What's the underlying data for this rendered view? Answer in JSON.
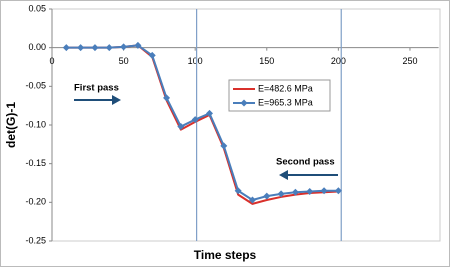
{
  "chart_data": {
    "type": "line",
    "x_label": "Time steps",
    "y_label": "det(G)-1",
    "x": [
      10,
      20,
      30,
      40,
      50,
      60,
      70,
      80,
      90,
      100,
      110,
      120,
      130,
      140,
      150,
      160,
      170,
      180,
      190,
      200
    ],
    "series": [
      {
        "name": "E=482.6 MPa",
        "color": "#d9302b",
        "marker": "none",
        "values": [
          0,
          0,
          0,
          0,
          0.001,
          0.003,
          -0.012,
          -0.068,
          -0.106,
          -0.096,
          -0.087,
          -0.13,
          -0.19,
          -0.202,
          -0.197,
          -0.193,
          -0.19,
          -0.188,
          -0.187,
          -0.186
        ]
      },
      {
        "name": "E=965.3 MPa",
        "color": "#4a7ebb",
        "marker": "diamond",
        "values": [
          0,
          0,
          0,
          0,
          0.001,
          0.003,
          -0.01,
          -0.065,
          -0.102,
          -0.093,
          -0.085,
          -0.127,
          -0.185,
          -0.197,
          -0.192,
          -0.189,
          -0.187,
          -0.186,
          -0.185,
          -0.185
        ]
      }
    ],
    "xlim": [
      0,
      270
    ],
    "xticks": [
      0,
      50,
      100,
      150,
      200,
      250
    ],
    "ylim": [
      -0.25,
      0.05
    ],
    "yticks": [
      {
        "value": 0.05,
        "label": "0.05"
      },
      {
        "value": 0,
        "label": "0.00"
      },
      {
        "value": -0.05,
        "label": "-0.05"
      },
      {
        "value": -0.1,
        "label": "-0.10"
      },
      {
        "value": -0.15,
        "label": "-0.15"
      },
      {
        "value": -0.2,
        "label": "-0.20"
      },
      {
        "value": -0.25,
        "label": "-0.25"
      }
    ],
    "vlines": [
      101,
      202
    ],
    "annotations": [
      "First pass",
      "Second pass"
    ]
  }
}
